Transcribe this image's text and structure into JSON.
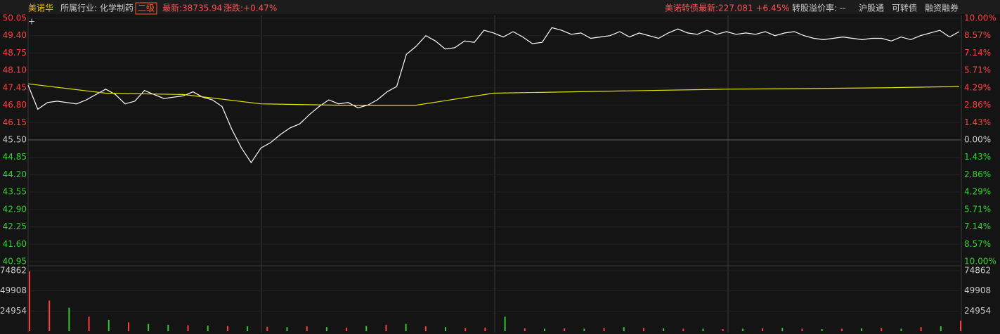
{
  "header": {
    "name": "美诺华",
    "industry_label": "所属行业:",
    "industry": "化学制药",
    "level": "二级",
    "latest": "最新:38735.94",
    "change": "涨跌:+0.47%",
    "bond": "美诺转债最新:227.081 +6.45%",
    "premium": "转股溢价率: --",
    "links": [
      "沪股通",
      "可转债",
      "融资融券"
    ]
  },
  "chart_data": [
    {
      "type": "line",
      "ylim": [
        40.95,
        50.05
      ],
      "yticks": [
        50.05,
        {
          "value": 49.4,
          "label": "49.40"
        },
        48.75,
        {
          "value": 48.1,
          "label": "48.10"
        },
        47.45,
        {
          "value": 46.8,
          "label": "46.80"
        },
        46.15,
        {
          "value": 45.5,
          "label": "45.50"
        },
        44.85,
        {
          "value": 44.2,
          "label": "44.20"
        },
        43.55,
        {
          "value": 42.9,
          "label": "42.90"
        },
        42.25,
        {
          "value": 41.6,
          "label": "41.60"
        },
        40.95
      ],
      "y2lim": [
        -10,
        10
      ],
      "y2ticks": [
        {
          "value": 10,
          "label": "10.00%"
        },
        {
          "value": 8.57,
          "label": "8.57%"
        },
        {
          "value": 7.14,
          "label": "7.14%"
        },
        {
          "value": 5.71,
          "label": "5.71%"
        },
        {
          "value": 4.29,
          "label": "4.29%"
        },
        {
          "value": 2.86,
          "label": "2.86%"
        },
        {
          "value": 1.43,
          "label": "1.43%"
        },
        {
          "value": 0,
          "label": "0.00%"
        },
        {
          "value": -1.43,
          "label": "1.43%"
        },
        {
          "value": -2.86,
          "label": "2.86%"
        },
        {
          "value": -4.29,
          "label": "4.29%"
        },
        {
          "value": -5.71,
          "label": "5.71%"
        },
        {
          "value": -7.14,
          "label": "7.14%"
        },
        {
          "value": -8.57,
          "label": "8.57%"
        },
        {
          "value": -10,
          "label": "10.00%"
        }
      ],
      "series": [
        {
          "color": "#ffffff",
          "values": [
            47.55,
            46.65,
            46.9,
            46.95,
            46.9,
            46.85,
            47.0,
            47.2,
            47.4,
            47.2,
            46.85,
            46.95,
            47.35,
            47.2,
            47.05,
            47.1,
            47.15,
            47.3,
            47.1,
            47.0,
            46.75,
            45.9,
            45.2,
            44.65,
            45.2,
            45.4,
            45.7,
            45.95,
            46.1,
            46.45,
            46.75,
            47.0,
            46.85,
            46.9,
            46.7,
            46.8,
            47.0,
            47.3,
            47.5,
            48.7,
            49.0,
            49.4,
            49.2,
            48.9,
            48.95,
            49.2,
            49.15,
            49.6,
            49.5,
            49.35,
            49.55,
            49.35,
            49.1,
            49.15,
            49.7,
            49.6,
            49.45,
            49.5,
            49.3,
            49.35,
            49.4,
            49.55,
            49.35,
            49.5,
            49.4,
            49.3,
            49.5,
            49.65,
            49.5,
            49.45,
            49.6,
            49.45,
            49.55,
            49.45,
            49.5,
            49.45,
            49.55,
            49.4,
            49.5,
            49.55,
            49.4,
            49.3,
            49.25,
            49.3,
            49.35,
            49.3,
            49.25,
            49.3,
            49.3,
            49.2,
            49.35,
            49.25,
            49.4,
            49.5,
            49.6,
            49.35,
            49.55
          ]
        },
        {
          "color": "#e6e600",
          "values": [
            47.6,
            47.25,
            47.2,
            46.85,
            46.8,
            46.8,
            47.25,
            47.3,
            47.35,
            47.4,
            47.42,
            47.45,
            47.5
          ]
        }
      ]
    },
    {
      "type": "bar",
      "ylim": [
        0,
        74862
      ],
      "yticks": [
        24954,
        49908,
        74862
      ],
      "values": [
        74000,
        38000,
        29000,
        18000,
        14000,
        11000,
        9000,
        8000,
        7500,
        7000,
        6500,
        6000,
        5500,
        5000,
        6000,
        5000,
        4500,
        6500,
        8000,
        9000,
        6000,
        5000,
        4000,
        4500,
        18000,
        3500,
        3000,
        3500,
        3000,
        4000,
        5000,
        4000,
        3500,
        3000,
        3000,
        2500,
        3000,
        3500,
        4000,
        3000,
        2500,
        3000,
        3500,
        4000,
        3000,
        5000,
        6000,
        13000
      ],
      "colors": [
        "#ff3c3c",
        "#ff3c3c",
        "#32c832",
        "#ff3c3c",
        "#32c832",
        "#ff3c3c",
        "#32c832",
        "#32c832",
        "#ff3c3c",
        "#32c832",
        "#ff3c3c",
        "#32c832",
        "#ff3c3c",
        "#32c832",
        "#ff3c3c",
        "#32c832",
        "#ff3c3c",
        "#32c832",
        "#ff3c3c",
        "#32c832",
        "#ff3c3c",
        "#32c832",
        "#ff3c3c",
        "#ff3c3c",
        "#32c832",
        "#ff3c3c",
        "#32c832",
        "#ff3c3c",
        "#32c832",
        "#ff3c3c",
        "#32c832",
        "#ff3c3c",
        "#32c832",
        "#ff3c3c",
        "#32c832",
        "#ff3c3c",
        "#32c832",
        "#ff3c3c",
        "#32c832",
        "#ff3c3c",
        "#32c832",
        "#ff3c3c",
        "#32c832",
        "#ff3c3c",
        "#32c832",
        "#ff3c3c",
        "#32c832",
        "#ff3c3c"
      ]
    }
  ]
}
